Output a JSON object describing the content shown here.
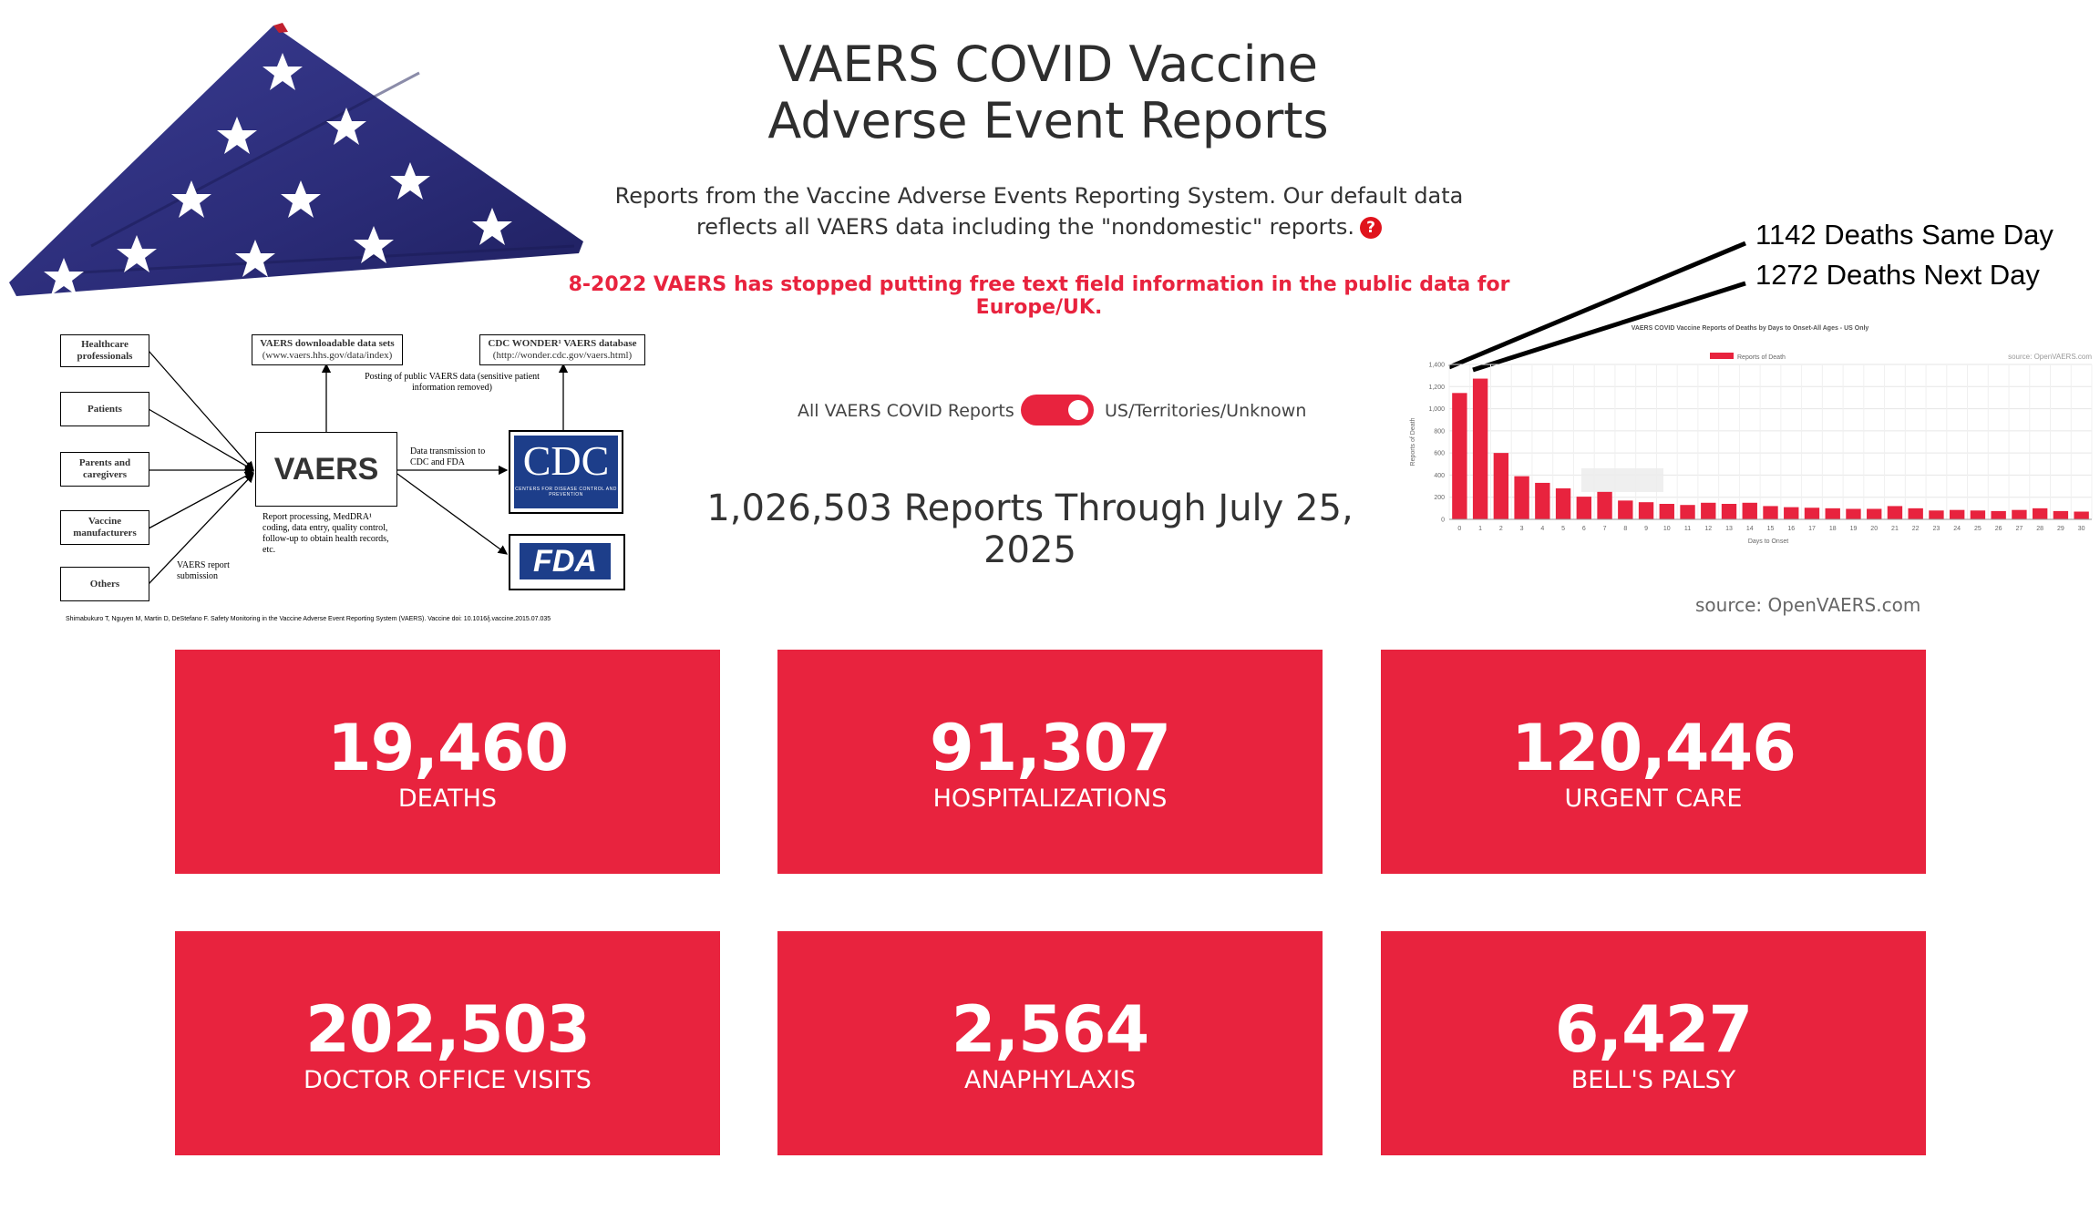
{
  "header": {
    "title_line1": "VAERS COVID Vaccine",
    "title_line2": "Adverse Event Reports",
    "subtitle_line1": "Reports from the Vaccine Adverse Events Reporting System. Our default data",
    "subtitle_line2": "reflects all VAERS data including the \"nondomestic\" reports.",
    "help_icon_label": "?",
    "notice": "8-2022 VAERS has stopped putting free text field information in the public data for Europe/UK."
  },
  "toggle": {
    "left_label": "All VAERS COVID Reports",
    "right_label": "US/Territories/Unknown",
    "state": "on"
  },
  "reports_count": "1,026,503 Reports Through July 25, 2025",
  "diagram": {
    "sources": [
      "Healthcare professionals",
      "Patients",
      "Parents and caregivers",
      "Vaccine manufacturers",
      "Others"
    ],
    "center": "VAERS",
    "downloadable": "VAERS downloadable data sets",
    "downloadable_url": "(www.vaers.hhs.gov/data/index)",
    "wonder": "CDC WONDER¹ VAERS database",
    "wonder_url": "(http://wonder.cdc.gov/vaers.html)",
    "posting_note": "Posting of public VAERS data (sensitive patient information removed)",
    "transmission_note": "Data transmission to CDC and FDA",
    "processing_note": "Report processing, MedDRA¹ coding, data entry, quality control, follow-up to obtain health records, etc.",
    "submission_note": "VAERS report submission",
    "cdc_label": "CDC",
    "cdc_sub": "CENTERS FOR DISEASE CONTROL AND PREVENTION",
    "fda_label": "FDA",
    "citation": "Shimabukuro T, Nguyen M, Martin D, DeStefano F.  Safety Monitoring in the Vaccine Adverse Event Reporting System (VAERS).  Vaccine doi: 10.1016/j.vaccine.2015.07.035"
  },
  "annotations": {
    "same_day": "1142 Deaths Same Day",
    "next_day": "1272 Deaths Next Day"
  },
  "source": "source: OpenVAERS.com",
  "chart_data": {
    "type": "bar",
    "title": "VAERS COVID Vaccine Reports of Deaths by Days to Onset-All Ages - US Only",
    "xlabel": "Days to Onset",
    "ylabel": "Reports of Death",
    "legend": "Reports of Death",
    "legend_position": "top",
    "watermark": "source: OpenVAERS.com",
    "ylim": [
      0,
      1400
    ],
    "yticks": [
      0,
      200,
      400,
      600,
      800,
      "1,000",
      "1,200",
      "1,400"
    ],
    "grid": true,
    "color": "#e8233e",
    "categories": [
      "0",
      "1",
      "2",
      "3",
      "4",
      "5",
      "6",
      "7",
      "8",
      "9",
      "10",
      "11",
      "12",
      "13",
      "14",
      "15",
      "16",
      "17",
      "18",
      "19",
      "20",
      "21",
      "22",
      "23",
      "24",
      "25",
      "26",
      "27",
      "28",
      "29",
      "30"
    ],
    "values": [
      1142,
      1272,
      600,
      390,
      330,
      280,
      205,
      255,
      170,
      155,
      140,
      130,
      150,
      140,
      150,
      120,
      110,
      105,
      100,
      95,
      95,
      120,
      100,
      80,
      85,
      80,
      75,
      85,
      100,
      75,
      70
    ]
  },
  "stats": [
    {
      "value": "19,460",
      "label": "DEATHS"
    },
    {
      "value": "91,307",
      "label": "HOSPITALIZATIONS"
    },
    {
      "value": "120,446",
      "label": "URGENT CARE"
    },
    {
      "value": "202,503",
      "label": "DOCTOR OFFICE VISITS"
    },
    {
      "value": "2,564",
      "label": "ANAPHYLAXIS"
    },
    {
      "value": "6,427",
      "label": "BELL'S PALSY"
    }
  ],
  "colors": {
    "accent": "#e8233e",
    "flag_blue": "#2c2d7a"
  }
}
